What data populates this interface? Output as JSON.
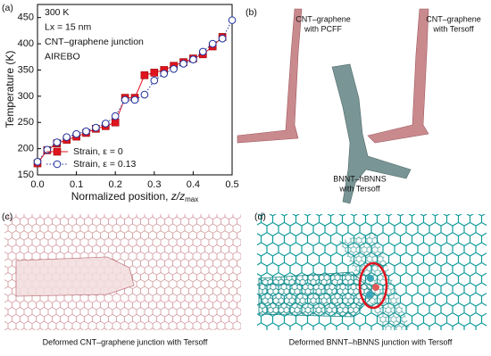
{
  "chart_data": {
    "type": "line",
    "panel": "(a)",
    "ylabel": "Temperature (K)",
    "xlabel": {
      "text": "Normalized position, ",
      "var": "z/z",
      "sub": "max"
    },
    "annotations": [
      "300 K",
      "Lx = 15 nm",
      "CNT–graphene junction",
      "AIREBO"
    ],
    "x": [
      0,
      0.025,
      0.05,
      0.075,
      0.1,
      0.125,
      0.15,
      0.175,
      0.2,
      0.225,
      0.25,
      0.275,
      0.3,
      0.325,
      0.35,
      0.375,
      0.4,
      0.425,
      0.45,
      0.475,
      0.5
    ],
    "series": [
      {
        "name": "Strain, ε = 0",
        "color": "#e0141e",
        "marker": "square",
        "dash": false,
        "values": [
          172,
          197,
          210,
          217,
          223,
          230,
          238,
          243,
          250,
          297,
          297,
          340,
          345,
          350,
          358,
          365,
          372,
          380,
          395,
          413,
          null
        ]
      },
      {
        "name": "Strain, ε = 0.13",
        "color": "#1f2f9c",
        "marker": "circle",
        "dash": true,
        "values": [
          175,
          198,
          212,
          222,
          228,
          233,
          240,
          248,
          262,
          293,
          293,
          303,
          330,
          343,
          352,
          362,
          370,
          385,
          400,
          410,
          445
        ]
      }
    ],
    "xlim": [
      0,
      0.5
    ],
    "ylim": [
      150,
      475
    ],
    "xticks": [
      {
        "value": 0,
        "label": "0.0"
      },
      0.1,
      0.2,
      0.3,
      0.4,
      0.5
    ],
    "yticks": [
      150,
      200,
      250,
      300,
      350,
      400,
      450
    ],
    "legend": "lower-left"
  },
  "panels": {
    "b": {
      "label": "(b)",
      "texts": [
        [
          "CNT–graphene",
          "with PCFF"
        ],
        [
          "CNT–graphene",
          "with Tersoff"
        ],
        [
          "BNNT–hBNNS",
          "with Tersoff"
        ]
      ]
    },
    "c": {
      "label": "(c)",
      "caption": "Deformed CNT–graphene junction with Tersoff"
    },
    "d": {
      "label": "(d)",
      "caption": "Deformed BNNT–hBNNS junction with Tersoff"
    }
  }
}
